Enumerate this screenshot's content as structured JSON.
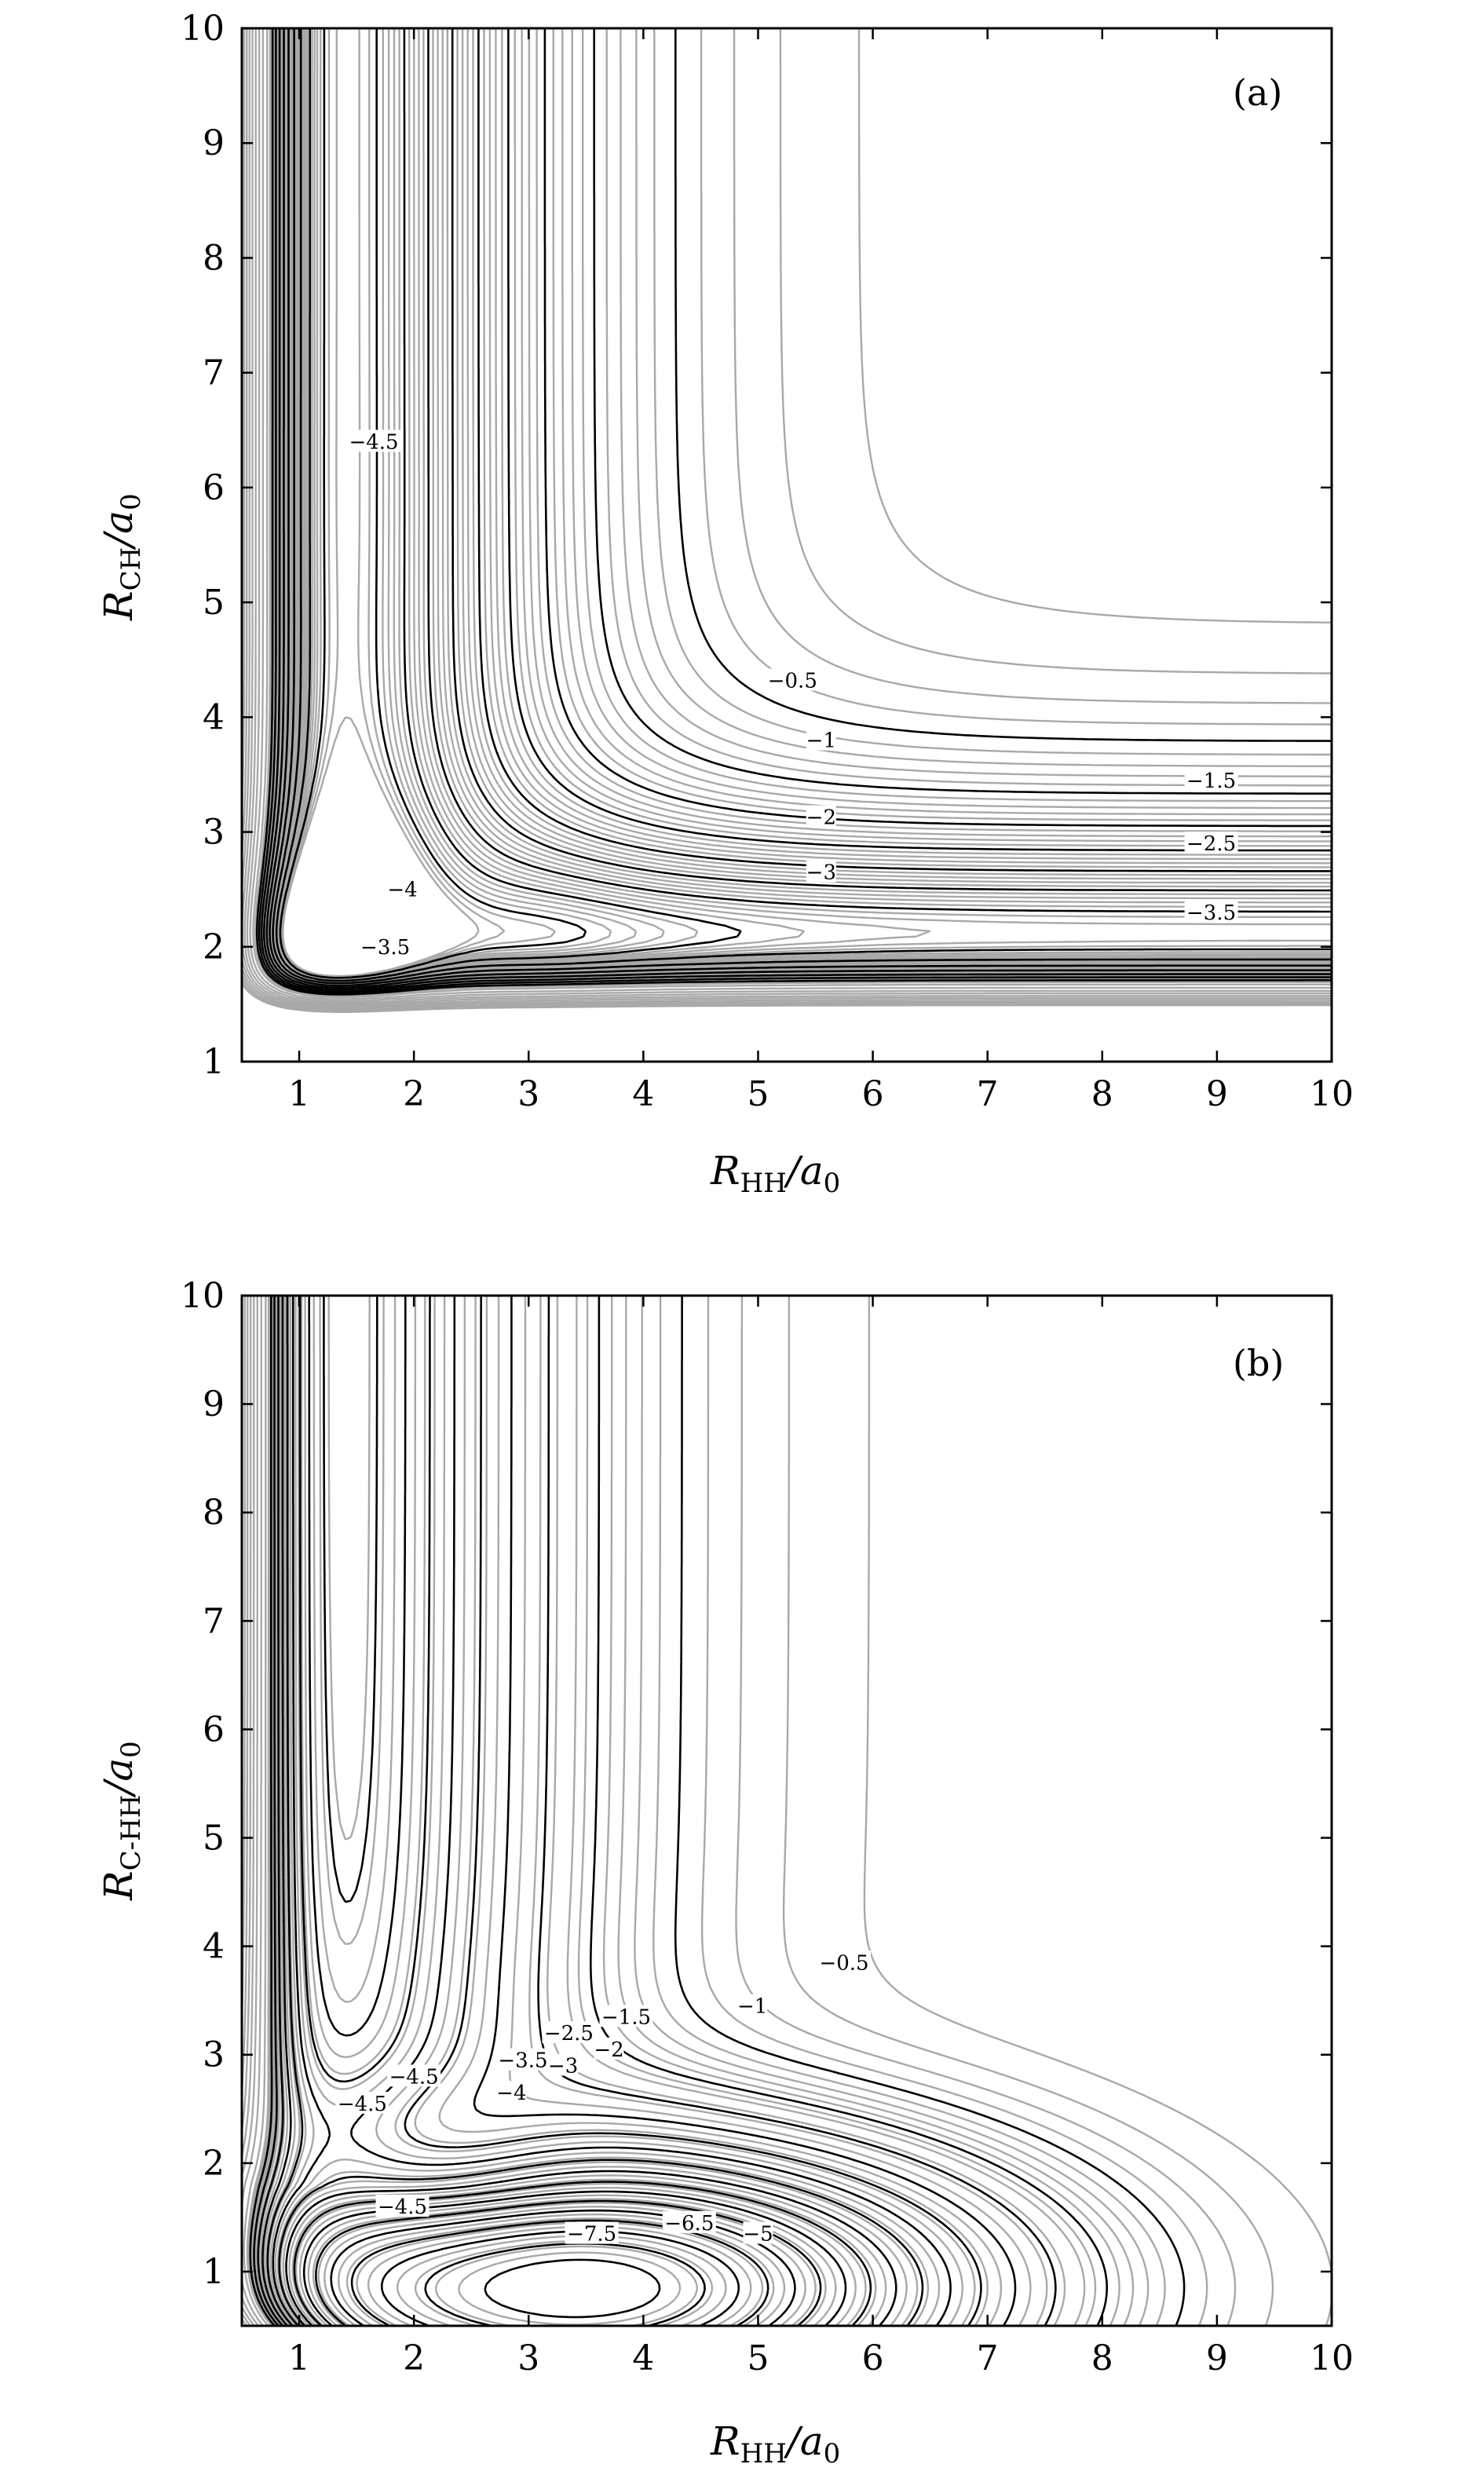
{
  "chart_data": [
    {
      "type": "contour",
      "panel_label": "(a)",
      "xlabel": {
        "main": "R",
        "sub": "HH",
        "unit": "/a",
        "unit_sub": "0"
      },
      "ylabel": {
        "main": "R",
        "sub": "CH",
        "unit": "/a",
        "unit_sub": "0"
      },
      "xlim": [
        0.5,
        10
      ],
      "ylim": [
        1,
        10
      ],
      "xticks": [
        1,
        2,
        3,
        4,
        5,
        6,
        7,
        8,
        9,
        10
      ],
      "yticks": [
        1,
        2,
        3,
        4,
        5,
        6,
        7,
        8,
        9,
        10
      ],
      "grid": false,
      "labeled_levels": [
        "−0.5",
        "−1",
        "−1.5",
        "−2",
        "−2.5",
        "−3",
        "−3.5",
        "−4",
        "−4.5"
      ],
      "contour_labels": [
        {
          "text": "−0.5",
          "x": 5.3,
          "y": 4.32
        },
        {
          "text": "−1",
          "x": 5.55,
          "y": 3.8
        },
        {
          "text": "−1.5",
          "x": 8.95,
          "y": 3.45
        },
        {
          "text": "−2",
          "x": 5.55,
          "y": 3.13
        },
        {
          "text": "−2.5",
          "x": 8.95,
          "y": 2.9
        },
        {
          "text": "−3",
          "x": 5.55,
          "y": 2.65
        },
        {
          "text": "−3.5",
          "x": 8.95,
          "y": 2.3
        },
        {
          "text": "−3.5",
          "x": 1.75,
          "y": 2.0
        },
        {
          "text": "−4",
          "x": 1.9,
          "y": 2.5
        },
        {
          "text": "−4.5",
          "x": 1.65,
          "y": 6.4
        }
      ]
    },
    {
      "type": "contour",
      "panel_label": "(b)",
      "xlabel": {
        "main": "R",
        "sub": "HH",
        "unit": "/a",
        "unit_sub": "0"
      },
      "ylabel": {
        "main": "R",
        "sub": "C-HH",
        "unit": "/a",
        "unit_sub": "0"
      },
      "xlim": [
        0.5,
        10
      ],
      "ylim": [
        0.5,
        10
      ],
      "xticks": [
        1,
        2,
        3,
        4,
        5,
        6,
        7,
        8,
        9,
        10
      ],
      "yticks": [
        1,
        2,
        3,
        4,
        5,
        6,
        7,
        8,
        9,
        10
      ],
      "grid": false,
      "labeled_levels": [
        "−0.5",
        "−1",
        "−1.5",
        "−2",
        "−2.5",
        "−3",
        "−3.5",
        "−4",
        "−4.5",
        "−5",
        "−6.5",
        "−7.5"
      ],
      "contour_labels": [
        {
          "text": "−0.5",
          "x": 5.75,
          "y": 3.85
        },
        {
          "text": "−1",
          "x": 4.95,
          "y": 3.45
        },
        {
          "text": "−1.5",
          "x": 3.85,
          "y": 3.35
        },
        {
          "text": "−2",
          "x": 3.7,
          "y": 3.05
        },
        {
          "text": "−2.5",
          "x": 3.35,
          "y": 3.2
        },
        {
          "text": "−3",
          "x": 3.3,
          "y": 2.9
        },
        {
          "text": "−3.5",
          "x": 2.95,
          "y": 2.95
        },
        {
          "text": "−4",
          "x": 2.85,
          "y": 2.65
        },
        {
          "text": "−4.5",
          "x": 2.0,
          "y": 2.8
        },
        {
          "text": "−4.5",
          "x": 1.55,
          "y": 2.55
        },
        {
          "text": "−4.5",
          "x": 1.9,
          "y": 1.6
        },
        {
          "text": "−5",
          "x": 5.0,
          "y": 1.35
        },
        {
          "text": "−6.5",
          "x": 4.4,
          "y": 1.45
        },
        {
          "text": "−7.5",
          "x": 3.55,
          "y": 1.35
        }
      ]
    }
  ]
}
